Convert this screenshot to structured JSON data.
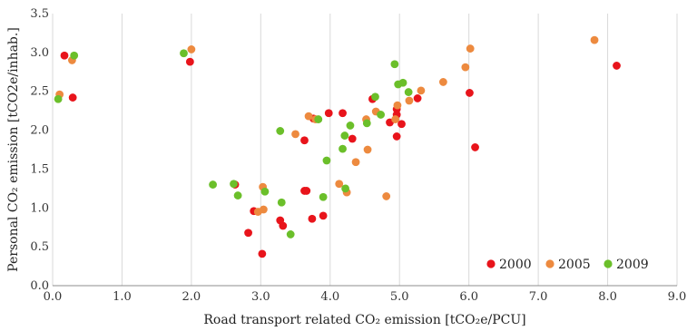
{
  "chart_data": {
    "type": "scatter",
    "xlabel": "Road transport related CO₂ emission [tCO₂e/PCU]",
    "ylabel": "Personal CO₂ emission [tCO2e/inhab.]",
    "xlim": [
      0,
      9
    ],
    "ylim": [
      0,
      3.5
    ],
    "xticks": [
      "0.0",
      "1.0",
      "2.0",
      "3.0",
      "4.0",
      "5.0",
      "6.0",
      "7.0",
      "8.0",
      "9.0"
    ],
    "yticks": [
      "0.0",
      "0.5",
      "1.0",
      "1.5",
      "2.0",
      "2.5",
      "3.0",
      "3.5"
    ],
    "grid": "vertical",
    "legend_position": "bottom-right",
    "series": [
      {
        "name": "2000",
        "color": "#e8141b",
        "points": [
          [
            0.17,
            2.96
          ],
          [
            0.29,
            2.42
          ],
          [
            1.98,
            2.88
          ],
          [
            2.63,
            1.3
          ],
          [
            2.82,
            0.68
          ],
          [
            2.9,
            0.96
          ],
          [
            3.02,
            0.41
          ],
          [
            3.28,
            0.84
          ],
          [
            3.32,
            0.77
          ],
          [
            3.63,
            1.22
          ],
          [
            3.66,
            1.22
          ],
          [
            3.63,
            1.87
          ],
          [
            3.74,
            0.86
          ],
          [
            3.76,
            2.15
          ],
          [
            3.9,
            0.9
          ],
          [
            3.98,
            2.22
          ],
          [
            4.18,
            2.22
          ],
          [
            4.32,
            1.89
          ],
          [
            4.61,
            2.4
          ],
          [
            4.86,
            2.1
          ],
          [
            4.96,
            2.27
          ],
          [
            4.96,
            2.2
          ],
          [
            4.96,
            1.92
          ],
          [
            5.03,
            2.08
          ],
          [
            5.26,
            2.41
          ],
          [
            6.01,
            2.48
          ],
          [
            6.09,
            1.78
          ],
          [
            8.13,
            2.83
          ]
        ]
      },
      {
        "name": "2005",
        "color": "#ed8a3f",
        "points": [
          [
            0.1,
            2.46
          ],
          [
            0.28,
            2.9
          ],
          [
            2.0,
            3.04
          ],
          [
            2.96,
            0.95
          ],
          [
            3.03,
            1.27
          ],
          [
            3.04,
            0.98
          ],
          [
            3.5,
            1.95
          ],
          [
            3.69,
            2.18
          ],
          [
            3.79,
            2.14
          ],
          [
            4.13,
            1.31
          ],
          [
            4.24,
            1.2
          ],
          [
            4.37,
            1.59
          ],
          [
            4.52,
            2.14
          ],
          [
            4.54,
            1.75
          ],
          [
            4.66,
            2.24
          ],
          [
            4.81,
            1.15
          ],
          [
            4.94,
            2.14
          ],
          [
            4.97,
            2.32
          ],
          [
            5.14,
            2.38
          ],
          [
            5.31,
            2.51
          ],
          [
            5.63,
            2.62
          ],
          [
            5.95,
            2.81
          ],
          [
            6.02,
            3.05
          ],
          [
            7.81,
            3.16
          ]
        ]
      },
      {
        "name": "2009",
        "color": "#6bbf2a",
        "points": [
          [
            0.08,
            2.4
          ],
          [
            0.31,
            2.96
          ],
          [
            1.89,
            2.99
          ],
          [
            2.31,
            1.3
          ],
          [
            2.61,
            1.31
          ],
          [
            2.67,
            1.16
          ],
          [
            3.06,
            1.21
          ],
          [
            3.28,
            1.99
          ],
          [
            3.3,
            1.07
          ],
          [
            3.43,
            0.66
          ],
          [
            3.83,
            2.14
          ],
          [
            3.9,
            1.14
          ],
          [
            3.95,
            1.61
          ],
          [
            4.18,
            1.76
          ],
          [
            4.21,
            1.93
          ],
          [
            4.22,
            1.25
          ],
          [
            4.29,
            2.06
          ],
          [
            4.53,
            2.09
          ],
          [
            4.65,
            2.43
          ],
          [
            4.73,
            2.2
          ],
          [
            4.93,
            2.85
          ],
          [
            4.98,
            2.59
          ],
          [
            5.05,
            2.61
          ],
          [
            5.13,
            2.49
          ]
        ]
      }
    ]
  }
}
